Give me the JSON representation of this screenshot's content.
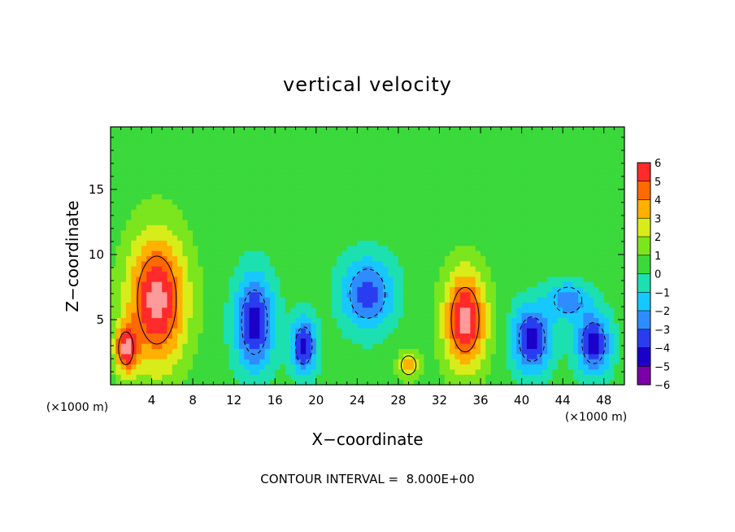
{
  "chart_data": {
    "type": "heatmap",
    "title": "vertical velocity",
    "xlabel": "X−coordinate",
    "ylabel": "Z−coordinate",
    "x_unit_left": "(×1000 m)",
    "x_unit_right": "(×1000 m)",
    "xlim": [
      0,
      50
    ],
    "ylim": [
      0,
      19.8
    ],
    "x_ticks": [
      4,
      8,
      12,
      16,
      20,
      24,
      28,
      32,
      36,
      40,
      44,
      48
    ],
    "x_tick_labels": [
      "4",
      "8",
      "12",
      "16",
      "20",
      "24",
      "28",
      "32",
      "36",
      "40",
      "44",
      "48"
    ],
    "y_ticks": [
      5,
      10,
      15
    ],
    "y_tick_labels": [
      "5",
      "10",
      "15"
    ],
    "colorbar": {
      "levels": [
        -6,
        -5,
        -4,
        -3,
        -2,
        -1,
        0,
        1,
        2,
        3,
        4,
        5,
        6
      ],
      "labels": [
        "6",
        "5",
        "4",
        "3",
        "2",
        "1",
        "0",
        "−1",
        "−2",
        "−3",
        "−4",
        "−5",
        "−6"
      ],
      "colors": [
        "#7a00a8",
        "#1a00c8",
        "#2a3cf0",
        "#2f8cff",
        "#17c7ff",
        "#1de0b0",
        "#3bd93b",
        "#7be51d",
        "#d8ec1a",
        "#ffb000",
        "#ff6a00",
        "#ff2a2a",
        "#ff9a9a"
      ]
    },
    "background_color": "#4be62a",
    "cells": [
      {
        "x": 4.5,
        "z": 6.5,
        "rx": 4.2,
        "rz": 7.5,
        "w": 6
      },
      {
        "x": 1.5,
        "z": 2.8,
        "rx": 1.6,
        "rz": 2.8,
        "w": 5
      },
      {
        "x": 14,
        "z": 4.8,
        "rx": 2.8,
        "rz": 5.5,
        "w": -5
      },
      {
        "x": 18.8,
        "z": 3,
        "rx": 1.8,
        "rz": 3.2,
        "w": -5
      },
      {
        "x": 25,
        "z": 7,
        "rx": 3.8,
        "rz": 4.2,
        "w": -4
      },
      {
        "x": 29,
        "z": 1.5,
        "rx": 1.6,
        "rz": 1.6,
        "w": 3
      },
      {
        "x": 34.5,
        "z": 5,
        "rx": 3,
        "rz": 5.5,
        "w": 6
      },
      {
        "x": 41,
        "z": 3.5,
        "rx": 2.8,
        "rz": 3.8,
        "w": -5
      },
      {
        "x": 47,
        "z": 3.2,
        "rx": 2.5,
        "rz": 3.5,
        "w": -5
      },
      {
        "x": 44.5,
        "z": 6.5,
        "rx": 3,
        "rz": 2.2,
        "w": -3
      }
    ]
  },
  "footer": {
    "contour_interval": "CONTOUR INTERVAL =  8.000E+00"
  }
}
